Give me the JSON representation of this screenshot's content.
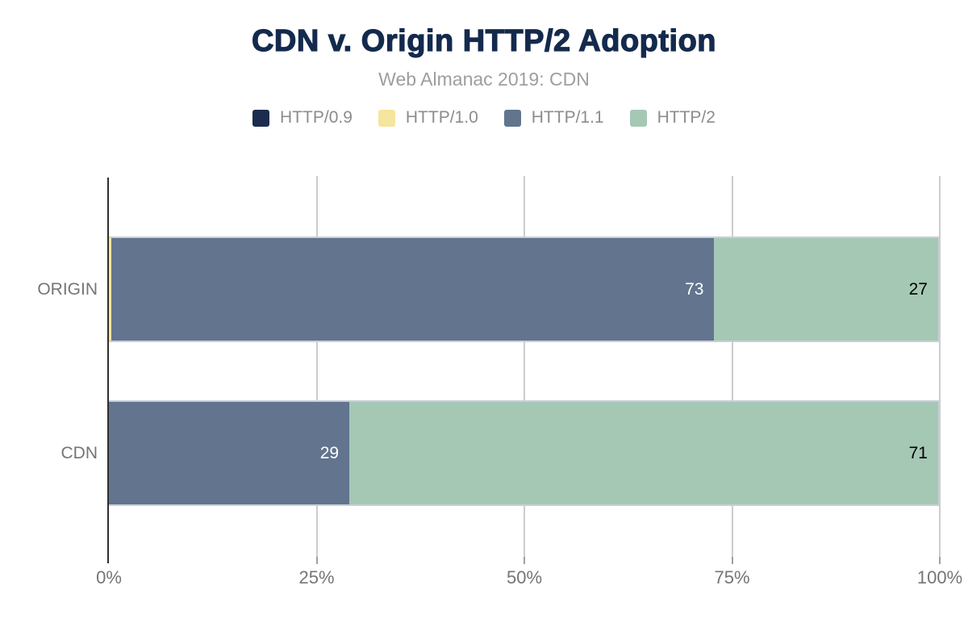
{
  "chart_data": {
    "type": "bar",
    "variant": "horizontal-stacked",
    "title": "CDN v. Origin HTTP/2 Adoption",
    "subtitle": "Web Almanac 2019: CDN",
    "categories": [
      "ORIGIN",
      "CDN"
    ],
    "series": [
      {
        "name": "HTTP/0.9",
        "color": "#1b2c4e",
        "label_color": "#ffffff",
        "values": [
          0,
          0
        ],
        "labels": [
          null,
          null
        ]
      },
      {
        "name": "HTTP/1.0",
        "color": "#f5e59d",
        "label_color": "#000000",
        "values": [
          0.3,
          0
        ],
        "labels": [
          null,
          null
        ]
      },
      {
        "name": "HTTP/1.1",
        "color": "#62748e",
        "label_color": "#ffffff",
        "values": [
          72.7,
          29
        ],
        "labels": [
          "73",
          "29"
        ]
      },
      {
        "name": "HTTP/2",
        "color": "#a5c8b4",
        "label_color": "#000000",
        "values": [
          27,
          71
        ],
        "labels": [
          "27",
          "71"
        ]
      }
    ],
    "x_ticks": [
      {
        "label": "0%",
        "value": 0
      },
      {
        "label": "25%",
        "value": 25
      },
      {
        "label": "50%",
        "value": 50
      },
      {
        "label": "75%",
        "value": 75
      },
      {
        "label": "100%",
        "value": 100
      }
    ],
    "xlim": [
      0,
      100
    ],
    "unit": "%",
    "grid": true,
    "legend_position": "top",
    "colors": {
      "title": "#142a4d",
      "subtitle": "#9e9e9e",
      "legend_text": "#8c8c8c",
      "axis_line": "#2f2f2f",
      "gridline": "#cccccc",
      "axis_label": "#757575",
      "background": "#ffffff"
    }
  }
}
